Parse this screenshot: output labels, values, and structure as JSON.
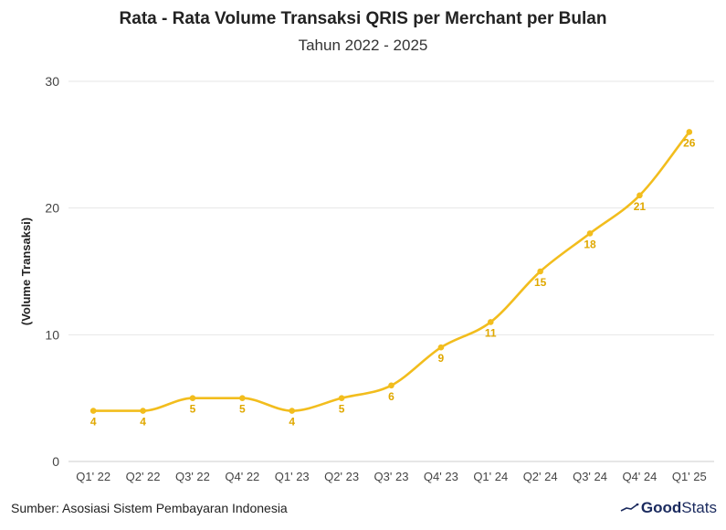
{
  "header": {
    "title": "Rata - Rata Volume Transaksi QRIS per Merchant per Bulan",
    "subtitle": "Tahun 2022 - 2025"
  },
  "footer": {
    "source": "Sumber: Asosiasi Sistem Pembayaran Indonesia",
    "brand_first": "Good",
    "brand_second": "Stats"
  },
  "colors": {
    "line": "#F2BD1D",
    "label": "#E0A800",
    "grid": "#E6E6E6",
    "axis_text": "#444444",
    "brand": "#1A2A5E"
  },
  "chart_data": {
    "type": "line",
    "title": "Rata - Rata Volume Transaksi QRIS per Merchant per Bulan",
    "subtitle": "Tahun 2022 - 2025",
    "xlabel": "",
    "ylabel": "(Volume Transaksi)",
    "ylim": [
      0,
      30
    ],
    "yticks": [
      0,
      10,
      20,
      30
    ],
    "grid": true,
    "categories": [
      "Q1' 22",
      "Q2' 22",
      "Q3' 22",
      "Q4' 22",
      "Q1' 23",
      "Q2' 23",
      "Q3' 23",
      "Q4' 23",
      "Q1' 24",
      "Q2' 24",
      "Q3' 24",
      "Q4' 24",
      "Q1' 25"
    ],
    "series": [
      {
        "values": [
          4,
          4,
          5,
          5,
          4,
          5,
          6,
          9,
          11,
          15,
          18,
          21,
          26
        ]
      }
    ]
  }
}
